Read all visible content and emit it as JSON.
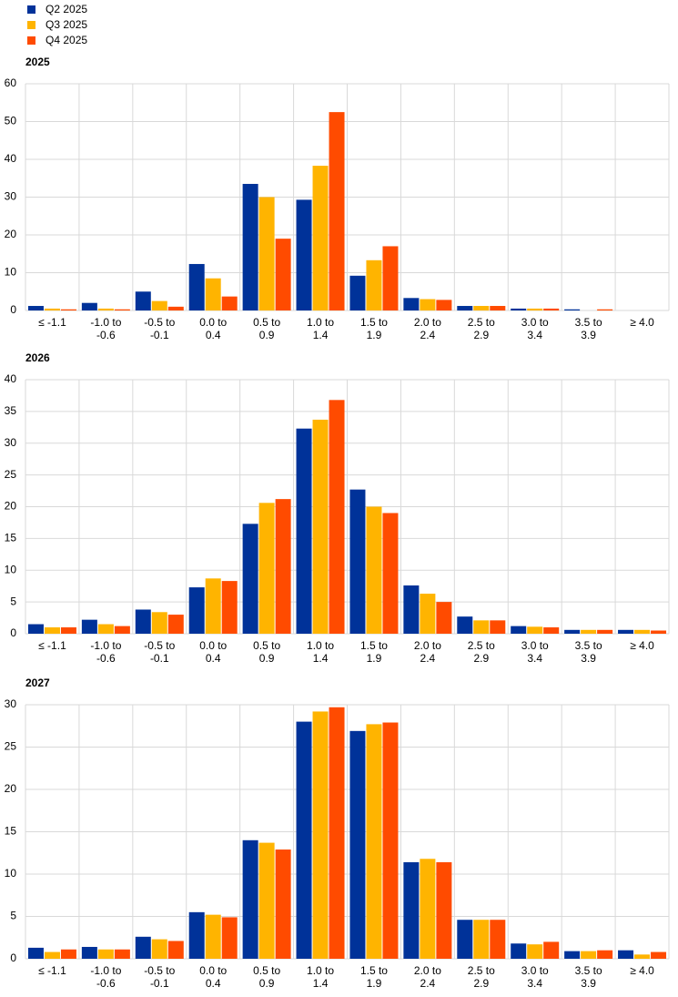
{
  "chart_data": [
    {
      "type": "bar",
      "title": "2025",
      "categories": [
        "≤ -1.1",
        "-1.0 to\n-0.6",
        "-0.5 to\n-0.1",
        "0.0 to\n0.4",
        "0.5 to\n0.9",
        "1.0 to\n1.4",
        "1.5 to\n1.9",
        "2.0 to\n2.4",
        "2.5 to\n2.9",
        "3.0 to\n3.4",
        "3.5 to\n3.9",
        "≥ 4.0"
      ],
      "series": [
        {
          "name": "Q2 2025",
          "color": "#003299",
          "values": [
            1.2,
            2.0,
            5.0,
            12.3,
            33.5,
            29.3,
            9.2,
            3.3,
            1.2,
            0.5,
            0.3,
            0
          ]
        },
        {
          "name": "Q3 2025",
          "color": "#ffb400",
          "values": [
            0.5,
            0.5,
            2.5,
            8.5,
            30.0,
            38.3,
            13.3,
            3.0,
            1.2,
            0.5,
            0,
            0
          ]
        },
        {
          "name": "Q4 2025",
          "color": "#ff4b00",
          "values": [
            0.3,
            0.3,
            1.0,
            3.7,
            19.0,
            52.5,
            17.0,
            2.8,
            1.2,
            0.5,
            0.3,
            0
          ]
        }
      ],
      "ylim": [
        0,
        60
      ],
      "yticks": [
        0,
        10,
        20,
        30,
        40,
        50,
        60
      ],
      "grid": true
    },
    {
      "type": "bar",
      "title": "2026",
      "categories": [
        "≤ -1.1",
        "-1.0 to\n-0.6",
        "-0.5 to\n-0.1",
        "0.0 to\n0.4",
        "0.5 to\n0.9",
        "1.0 to\n1.4",
        "1.5 to\n1.9",
        "2.0 to\n2.4",
        "2.5 to\n2.9",
        "3.0 to\n3.4",
        "3.5 to\n3.9",
        "≥ 4.0"
      ],
      "series": [
        {
          "color": "#003299",
          "values": [
            1.5,
            2.2,
            3.8,
            7.3,
            17.3,
            32.3,
            22.7,
            7.6,
            2.7,
            1.2,
            0.6,
            0.6
          ]
        },
        {
          "color": "#ffb400",
          "values": [
            1.0,
            1.5,
            3.4,
            8.7,
            20.6,
            33.7,
            20.0,
            6.3,
            2.1,
            1.1,
            0.6,
            0.6
          ]
        },
        {
          "color": "#ff4b00",
          "values": [
            1.0,
            1.2,
            3.0,
            8.3,
            21.2,
            36.8,
            19.0,
            5.0,
            2.1,
            1.0,
            0.6,
            0.5
          ]
        }
      ],
      "ylim": [
        0,
        40
      ],
      "yticks": [
        0,
        5,
        10,
        15,
        20,
        25,
        30,
        35,
        40
      ],
      "grid": true
    },
    {
      "type": "bar",
      "title": "2027",
      "categories": [
        "≤ -1.1",
        "-1.0 to\n-0.6",
        "-0.5 to\n-0.1",
        "0.0 to\n0.4",
        "0.5 to\n0.9",
        "1.0 to\n1.4",
        "1.5 to\n1.9",
        "2.0 to\n2.4",
        "2.5 to\n2.9",
        "3.0 to\n3.4",
        "3.5 to\n3.9",
        "≥ 4.0"
      ],
      "series": [
        {
          "color": "#003299",
          "values": [
            1.3,
            1.4,
            2.6,
            5.5,
            14.0,
            28.0,
            26.9,
            11.4,
            4.6,
            1.8,
            0.9,
            1.0
          ]
        },
        {
          "color": "#ffb400",
          "values": [
            0.8,
            1.1,
            2.3,
            5.2,
            13.7,
            29.2,
            27.7,
            11.8,
            4.6,
            1.7,
            0.9,
            0.5
          ]
        },
        {
          "color": "#ff4b00",
          "values": [
            1.1,
            1.1,
            2.1,
            4.9,
            12.9,
            29.7,
            27.9,
            11.4,
            4.6,
            2.0,
            1.0,
            0.8
          ]
        }
      ],
      "ylim": [
        0,
        30
      ],
      "yticks": [
        0,
        5,
        10,
        15,
        20,
        25,
        30
      ],
      "grid": true
    }
  ]
}
